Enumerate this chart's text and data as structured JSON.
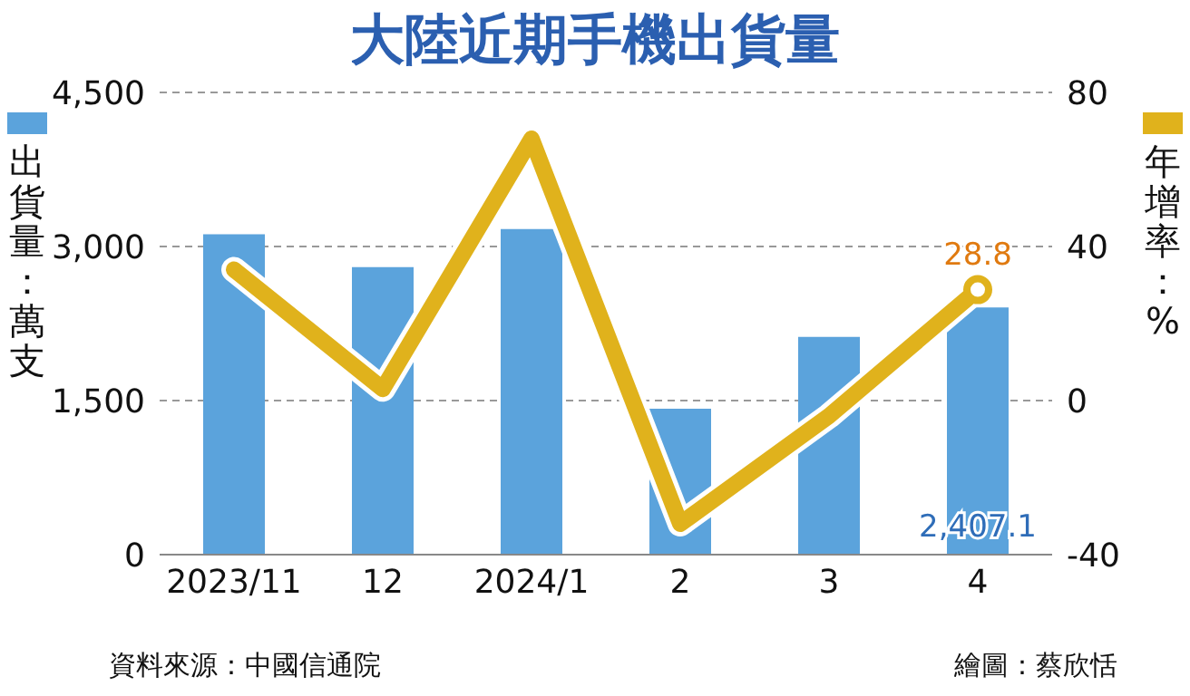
{
  "chart_data": {
    "type": "bar",
    "title": "大陸近期手機出貨量",
    "ylabel": "出貨量：萬支",
    "y2label": "年增率：%",
    "categories": [
      "2023/11",
      "12",
      "2024/1",
      "2",
      "3",
      "4"
    ],
    "series": [
      {
        "color": "#5ba3dc",
        "values": [
          3120,
          2800,
          3170,
          1420,
          2120,
          2407.1
        ],
        "value_labels": [
          null,
          null,
          null,
          null,
          null,
          "2,407.1"
        ]
      },
      {
        "type": "line",
        "axis": "y2",
        "color": "#e0b21c",
        "values": [
          34,
          3,
          68,
          -32,
          -4,
          28.8
        ],
        "value_labels": [
          null,
          null,
          null,
          null,
          null,
          "28.8"
        ]
      }
    ],
    "ylim": [
      0,
      4500
    ],
    "yticks": [
      0,
      {
        "value": 1500,
        "label": "1,500"
      },
      {
        "value": 3000,
        "label": "3,000"
      },
      {
        "value": 4500,
        "label": "4,500"
      }
    ],
    "y2lim": [
      -40,
      80
    ],
    "y2ticks": [
      -40,
      0,
      40,
      80
    ],
    "grid": "y",
    "marker": "none",
    "line_style": "solid",
    "annotations": [
      "資料來源：中國信通院",
      "繪圖：蔡欣恬"
    ]
  }
}
